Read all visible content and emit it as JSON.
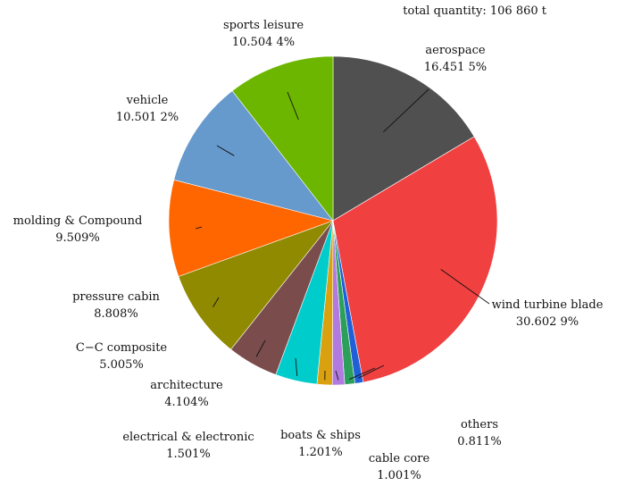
{
  "chart_data": {
    "type": "pie",
    "title": "",
    "annotation": "total quantity: 106 860 t",
    "start_angle_deg": 0,
    "direction": "clockwise-from-top",
    "slices": [
      {
        "name": "aerospace",
        "label": "aerospace",
        "pct_text": "16.451 5%",
        "value": 16.4515,
        "color": "#505050"
      },
      {
        "name": "wind turbine blade",
        "label": "wind turbine blade",
        "pct_text": "30.602 9%",
        "value": 30.6029,
        "color": "#f04040"
      },
      {
        "name": "others",
        "label": "others",
        "pct_text": "0.811%",
        "value": 0.811,
        "color": "#1f5fd8"
      },
      {
        "name": "cable core",
        "label": "cable core",
        "pct_text": "1.001%",
        "value": 1.001,
        "color": "#2ca05a"
      },
      {
        "name": "boats & ships",
        "label": "boats & ships",
        "pct_text": "1.201%",
        "value": 1.201,
        "color": "#b07ae0"
      },
      {
        "name": "electrical & electronic",
        "label": "electrical & electronic",
        "pct_text": "1.501%",
        "value": 1.501,
        "color": "#d9a010"
      },
      {
        "name": "architecture",
        "label": "architecture",
        "pct_text": "4.104%",
        "value": 4.104,
        "color": "#00cccc"
      },
      {
        "name": "C-C composite",
        "label": "C−C composite",
        "pct_text": "5.005%",
        "value": 5.005,
        "color": "#7a4c4c"
      },
      {
        "name": "pressure cabin",
        "label": "pressure cabin",
        "pct_text": "8.808%",
        "value": 8.808,
        "color": "#8f8a00"
      },
      {
        "name": "molding & Compound",
        "label": "molding & Compound",
        "pct_text": "9.509%",
        "value": 9.509,
        "color": "#ff6600"
      },
      {
        "name": "vehicle",
        "label": "vehicle",
        "pct_text": "10.501 2%",
        "value": 10.5012,
        "color": "#6699cc"
      },
      {
        "name": "sports leisure",
        "label": "sports leisure",
        "pct_text": "10.504 4%",
        "value": 10.5044,
        "color": "#6cb600"
      }
    ]
  }
}
